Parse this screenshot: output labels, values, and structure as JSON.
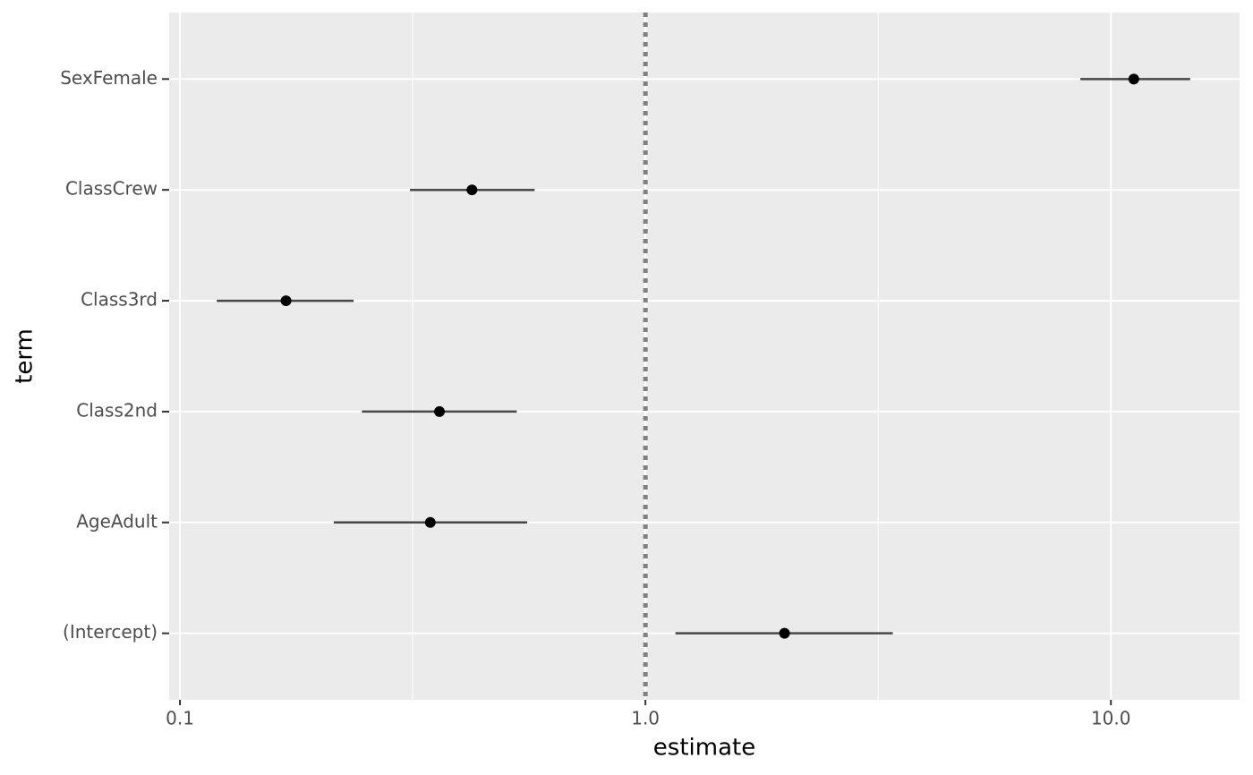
{
  "chart_data": {
    "type": "forest",
    "x_label": "estimate",
    "y_label": "term",
    "x_log": true,
    "grid": true,
    "categories": [
      "(Intercept)",
      "AgeAdult",
      "Class2nd",
      "Class3rd",
      "ClassCrew",
      "SexFemale"
    ],
    "estimate": [
      1.99,
      0.345,
      0.361,
      0.169,
      0.424,
      11.2
    ],
    "conf_low": [
      1.16,
      0.214,
      0.246,
      0.12,
      0.312,
      8.6
    ],
    "conf_high": [
      3.4,
      0.557,
      0.529,
      0.236,
      0.578,
      14.8
    ],
    "point_color": "#000000",
    "interval_color": "#474747",
    "reference_line": 1,
    "xlim": [
      0.0948,
      18.9
    ],
    "xticks": [
      0.1,
      {
        "value": 1,
        "label": "1.0"
      },
      {
        "value": 10,
        "label": "10.0"
      }
    ]
  }
}
